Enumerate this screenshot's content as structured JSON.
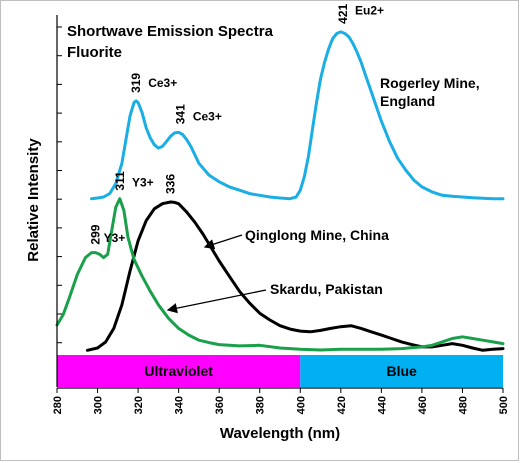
{
  "chart_data": {
    "type": "line",
    "title": [
      "Shortwave Emission Spectra",
      "Fluorite"
    ],
    "xlabel": "Wavelength (nm)",
    "ylabel": "Relative Intensity",
    "xlim": [
      280,
      500
    ],
    "ylim": [
      0,
      1
    ],
    "x_ticks": [
      280,
      300,
      320,
      340,
      360,
      380,
      400,
      420,
      440,
      460,
      480,
      500
    ],
    "grid": false,
    "series": [
      {
        "name": "Rogerley Mine, England",
        "label_lines": [
          "Rogerley Mine,",
          "England"
        ],
        "color": "#1aaee5",
        "x": [
          297,
          300,
          303,
          306,
          309,
          312,
          314,
          316,
          318,
          319,
          320,
          322,
          324,
          326,
          328,
          330,
          332,
          334,
          336,
          338,
          340,
          342,
          344,
          346,
          348,
          350,
          355,
          360,
          365,
          370,
          375,
          380,
          385,
          390,
          395,
          398,
          400,
          402,
          404,
          406,
          408,
          410,
          412,
          414,
          416,
          418,
          420,
          422,
          424,
          426,
          428,
          430,
          432,
          434,
          436,
          438,
          440,
          444,
          448,
          452,
          456,
          460,
          465,
          470,
          475,
          480,
          485,
          490,
          495,
          500
        ],
        "y": [
          0.455,
          0.457,
          0.46,
          0.47,
          0.5,
          0.56,
          0.63,
          0.7,
          0.74,
          0.745,
          0.74,
          0.71,
          0.665,
          0.635,
          0.615,
          0.605,
          0.61,
          0.625,
          0.64,
          0.65,
          0.652,
          0.645,
          0.63,
          0.61,
          0.585,
          0.56,
          0.525,
          0.505,
          0.49,
          0.48,
          0.47,
          0.465,
          0.46,
          0.457,
          0.455,
          0.46,
          0.48,
          0.52,
          0.58,
          0.66,
          0.74,
          0.81,
          0.86,
          0.9,
          0.93,
          0.945,
          0.95,
          0.945,
          0.935,
          0.915,
          0.89,
          0.86,
          0.825,
          0.79,
          0.755,
          0.72,
          0.685,
          0.625,
          0.575,
          0.54,
          0.51,
          0.49,
          0.475,
          0.465,
          0.462,
          0.46,
          0.458,
          0.456,
          0.455,
          0.455
        ]
      },
      {
        "name": "Qinglong Mine, China",
        "label_lines": [
          "Qinglong Mine, China"
        ],
        "color": "#000000",
        "x": [
          295,
          300,
          304,
          308,
          312,
          316,
          320,
          324,
          328,
          332,
          336,
          338,
          340,
          344,
          348,
          352,
          356,
          360,
          365,
          370,
          375,
          380,
          385,
          390,
          395,
          400,
          405,
          410,
          415,
          420,
          425,
          430,
          435,
          440,
          445,
          450,
          455,
          460,
          465,
          470,
          475,
          480,
          485,
          490,
          495,
          500
        ],
        "y": [
          0.005,
          0.012,
          0.03,
          0.07,
          0.14,
          0.24,
          0.33,
          0.39,
          0.425,
          0.44,
          0.445,
          0.444,
          0.44,
          0.415,
          0.385,
          0.35,
          0.31,
          0.27,
          0.225,
          0.18,
          0.145,
          0.115,
          0.095,
          0.078,
          0.068,
          0.062,
          0.06,
          0.064,
          0.07,
          0.075,
          0.078,
          0.07,
          0.06,
          0.05,
          0.04,
          0.03,
          0.022,
          0.015,
          0.015,
          0.02,
          0.025,
          0.02,
          0.012,
          0.005,
          0.008,
          0.01
        ]
      },
      {
        "name": "Skardu, Pakistan",
        "label_lines": [
          "Skardu, Pakistan"
        ],
        "color": "#1aa04a",
        "x": [
          280,
          283,
          286,
          290,
          294,
          297,
          299,
          301,
          303,
          305,
          307,
          309,
          311,
          313,
          315,
          318,
          322,
          326,
          330,
          335,
          340,
          345,
          350,
          355,
          360,
          370,
          380,
          390,
          400,
          410,
          420,
          430,
          440,
          450,
          460,
          465,
          470,
          475,
          480,
          485,
          490,
          495,
          500
        ],
        "y": [
          0.08,
          0.11,
          0.16,
          0.23,
          0.28,
          0.295,
          0.295,
          0.29,
          0.28,
          0.29,
          0.36,
          0.43,
          0.455,
          0.42,
          0.34,
          0.275,
          0.225,
          0.18,
          0.14,
          0.1,
          0.07,
          0.05,
          0.035,
          0.028,
          0.022,
          0.018,
          0.02,
          0.012,
          0.008,
          0.006,
          0.008,
          0.008,
          0.008,
          0.01,
          0.015,
          0.02,
          0.03,
          0.04,
          0.045,
          0.04,
          0.035,
          0.03,
          0.025
        ]
      }
    ],
    "annotations": [
      {
        "x": 299,
        "y": 0.295,
        "text": "299",
        "rotated": true
      },
      {
        "x": 303,
        "y": 0.285,
        "text": "Y3+",
        "rotated": false
      },
      {
        "x": 311,
        "y": 0.455,
        "text": "311",
        "rotated": true
      },
      {
        "x": 317,
        "y": 0.45,
        "text": "Y3+",
        "rotated": false
      },
      {
        "x": 319,
        "y": 0.745,
        "text": "319",
        "rotated": true
      },
      {
        "x": 325,
        "y": 0.745,
        "text": "Ce3+",
        "rotated": false
      },
      {
        "x": 336,
        "y": 0.445,
        "text": "336",
        "rotated": true
      },
      {
        "x": 341,
        "y": 0.652,
        "text": "341",
        "rotated": true
      },
      {
        "x": 347,
        "y": 0.645,
        "text": "Ce3+",
        "rotated": false
      },
      {
        "x": 421,
        "y": 0.95,
        "text": "421",
        "rotated": true
      },
      {
        "x": 427,
        "y": 0.96,
        "text": "Eu2+",
        "rotated": false
      }
    ],
    "bands": [
      {
        "label": "Ultraviolet",
        "from": 280,
        "to": 400,
        "color": "#ff00ff"
      },
      {
        "label": "Blue",
        "from": 400,
        "to": 500,
        "color": "#00b0f0"
      }
    ]
  }
}
